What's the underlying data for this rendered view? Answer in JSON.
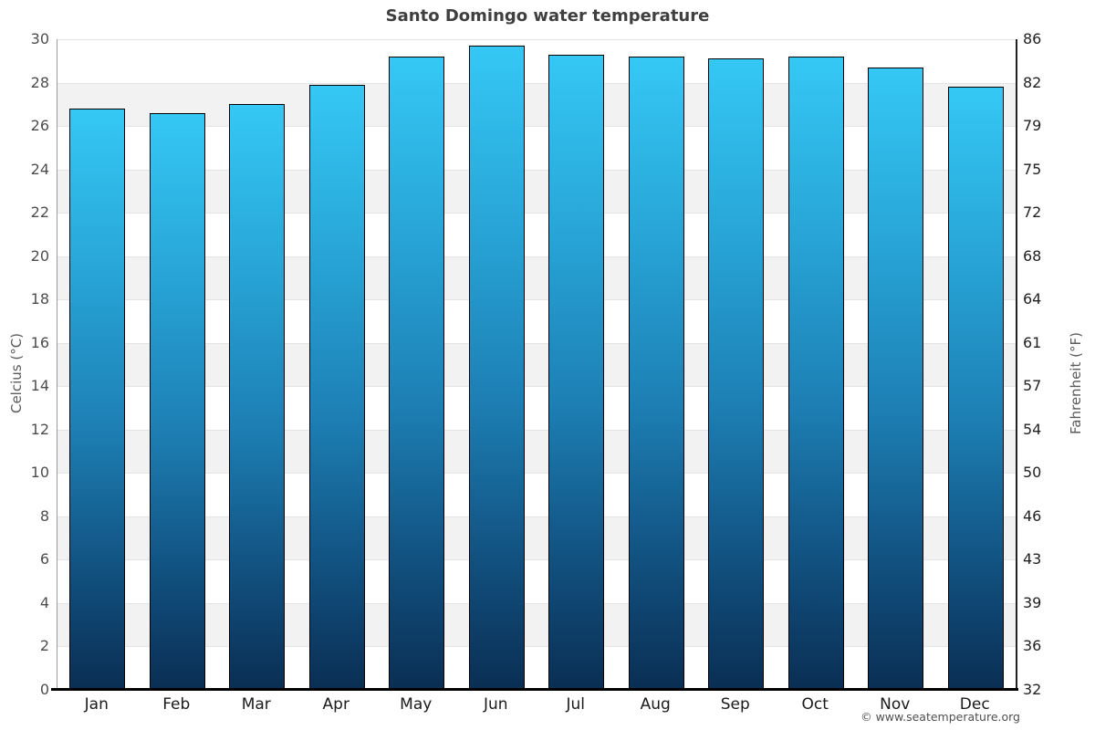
{
  "page": {
    "footer": "© www.seatemperature.org"
  },
  "chart_data": {
    "type": "bar",
    "title": "Santo Domingo water temperature",
    "categories": [
      "Jan",
      "Feb",
      "Mar",
      "Apr",
      "May",
      "Jun",
      "Jul",
      "Aug",
      "Sep",
      "Oct",
      "Nov",
      "Dec"
    ],
    "values": [
      26.8,
      26.6,
      27.0,
      27.9,
      29.2,
      29.7,
      29.3,
      29.2,
      29.1,
      29.2,
      28.7,
      27.8
    ],
    "xlabel": "",
    "ylabel_left": "Celcius (°C)",
    "ylabel_right": "Fahrenheit (°F)",
    "ylim_left": [
      0,
      30
    ],
    "yticks_left": [
      0,
      2,
      4,
      6,
      8,
      10,
      12,
      14,
      16,
      18,
      20,
      22,
      24,
      26,
      28,
      30
    ],
    "yticks_right": [
      32,
      36,
      39,
      43,
      46,
      50,
      54,
      57,
      61,
      64,
      68,
      72,
      75,
      79,
      82,
      86
    ],
    "grid": "horizontal-bands",
    "legend": "none",
    "colors": {
      "band_a": "#ffffff",
      "band_b": "#f2f2f2",
      "gridline": "#e4e4e4",
      "bar_gradient_top": "#35c8f5",
      "bar_gradient_mid": "#1d7fb4",
      "bar_gradient_bottom": "#0a2e53",
      "bar_border": "#000000",
      "axis_bottom": "#000000"
    }
  }
}
